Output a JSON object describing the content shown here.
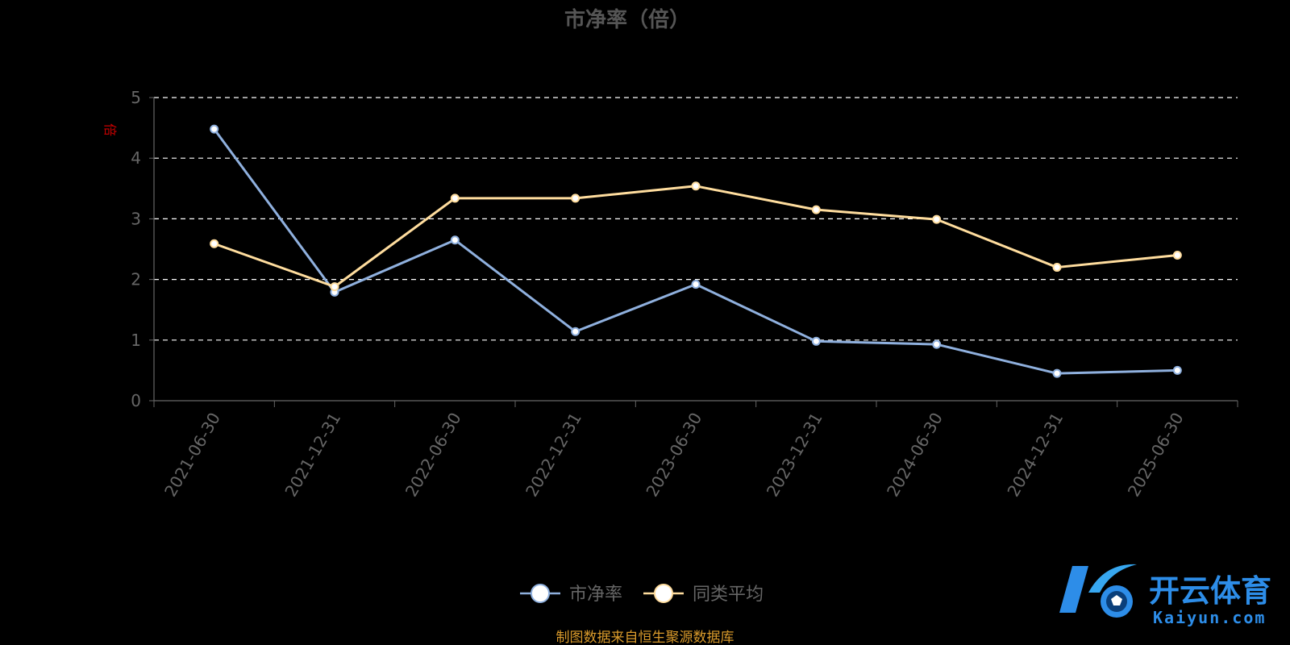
{
  "chart_data": {
    "type": "line",
    "title": "市净率（倍）",
    "ylabel": "倍",
    "ylim": [
      0,
      5
    ],
    "yticks": [
      0,
      1,
      2,
      3,
      4,
      5
    ],
    "categories": [
      "2021-06-30",
      "2021-12-31",
      "2022-06-30",
      "2022-12-31",
      "2023-06-30",
      "2023-12-31",
      "2024-06-30",
      "2024-12-31",
      "2025-06-30"
    ],
    "series": [
      {
        "name": "市净率",
        "values": [
          4.48,
          1.79,
          2.65,
          1.14,
          1.92,
          0.98,
          0.93,
          0.45,
          0.5
        ]
      },
      {
        "name": "同类平均",
        "values": [
          2.59,
          1.88,
          3.34,
          3.34,
          3.54,
          3.15,
          2.99,
          2.2,
          2.4
        ]
      }
    ],
    "grid": "dashed-horizontal",
    "legend": "bottom-center"
  },
  "colors": {
    "background": "#000000",
    "series1": "#8fb0de",
    "series2": "#ffdd9e",
    "ylabel": "#cc0000",
    "source": "#d99a2b",
    "grid": "#ffffff",
    "axis": "#666666"
  },
  "source_note": "制图数据来自恒生聚源数据库",
  "watermark": {
    "cn": "开云体育",
    "en": "Kaiyun.com"
  }
}
